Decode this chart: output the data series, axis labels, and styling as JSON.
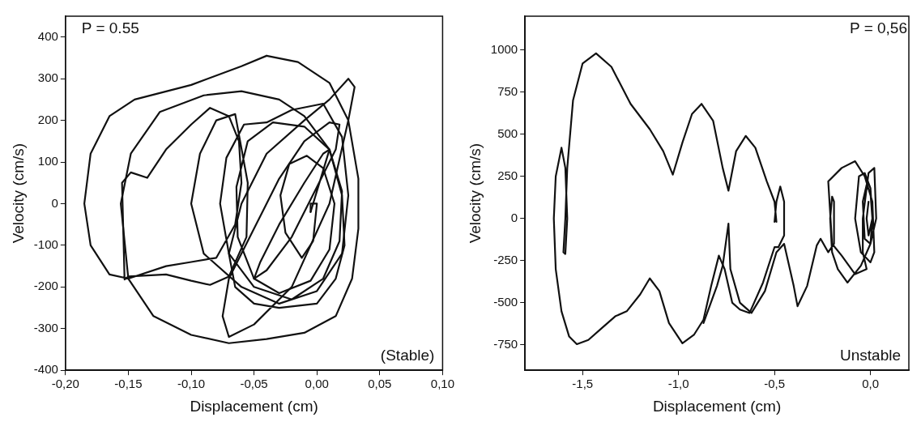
{
  "chart_data": [
    {
      "type": "line",
      "xlabel": "Displacement (cm)",
      "ylabel": "Velocity (cm/s)",
      "annotations": [
        "P = 0.55",
        "(Stable)"
      ],
      "xlim": [
        -0.2,
        0.1
      ],
      "ylim": [
        -400,
        450
      ],
      "xticks": [
        {
          "value": -0.2,
          "label": "-0,20"
        },
        {
          "value": -0.15,
          "label": "-0,15"
        },
        {
          "value": -0.1,
          "label": "-0,10"
        },
        {
          "value": -0.05,
          "label": "-0,05"
        },
        {
          "value": 0,
          "label": "0,00"
        },
        {
          "value": 0.05,
          "label": "0,05"
        },
        {
          "value": 0.1,
          "label": "0,10"
        }
      ],
      "yticks": [
        -400,
        -300,
        -200,
        -100,
        0,
        100,
        200,
        300,
        400
      ],
      "grid": false,
      "legend": false,
      "marker": "none",
      "line_style": "solid",
      "series": [
        {
          "color": "#111111",
          "x": [
            -0.005,
            -0.005,
            0,
            -0.003,
            -0.012,
            -0.025,
            -0.029,
            -0.022,
            -0.008,
            0.005,
            0.014,
            0.01,
            -0.005,
            -0.03,
            -0.05,
            -0.063,
            -0.064,
            -0.055,
            -0.035,
            -0.01,
            0.01,
            0.02,
            0.018,
            0.005,
            -0.02,
            -0.05,
            -0.07,
            -0.077,
            -0.072,
            -0.058,
            -0.04,
            -0.02,
            0.005,
            0.02,
            0.025,
            0.02,
            0,
            -0.03,
            -0.06,
            -0.09,
            -0.1,
            -0.093,
            -0.08,
            -0.065,
            -0.055,
            -0.056,
            -0.07,
            -0.085,
            -0.1,
            -0.12,
            -0.15,
            -0.153,
            -0.155,
            -0.148,
            -0.135,
            -0.12,
            -0.1,
            -0.085,
            -0.07,
            -0.062,
            -0.06,
            -0.065,
            -0.08,
            -0.1,
            -0.12,
            -0.15,
            -0.165,
            -0.18,
            -0.185,
            -0.18,
            -0.165,
            -0.145,
            -0.1,
            -0.06,
            -0.04
          ],
          "values": [
            -20,
            0,
            0,
            -90,
            -130,
            -70,
            20,
            95,
            115,
            85,
            0,
            -110,
            -185,
            -215,
            -180,
            -80,
            40,
            150,
            195,
            185,
            130,
            30,
            -90,
            -180,
            -230,
            -200,
            -120,
            0,
            110,
            190,
            195,
            225,
            240,
            160,
            20,
            -120,
            -210,
            -240,
            -200,
            -120,
            0,
            120,
            200,
            215,
            50,
            -80,
            -175,
            -195,
            -185,
            -170,
            -175,
            -182,
            50,
            75,
            62,
            130,
            190,
            230,
            210,
            150,
            50,
            -50,
            -130,
            -140,
            -150,
            -180,
            -170,
            -100,
            0,
            120,
            210,
            250,
            285,
            330,
            355
          ]
        },
        {
          "color": "#111111",
          "x": [
            -0.04,
            -0.015,
            0.01,
            0.025,
            0.033,
            0.033,
            0.028,
            0.015,
            -0.01,
            -0.04,
            -0.07,
            -0.1,
            -0.13,
            -0.15,
            -0.156,
            -0.148,
            -0.125,
            -0.09,
            -0.06,
            -0.03,
            -0.01,
            0.01,
            0.02,
            0.022,
            0.015,
            0,
            -0.03,
            -0.05,
            -0.065,
            -0.07,
            -0.06,
            -0.04,
            -0.01,
            0.01,
            0.025,
            0.03,
            0.025,
            0.01,
            -0.02,
            -0.05,
            -0.07,
            -0.075,
            -0.07,
            -0.05,
            -0.03,
            -0.01,
            0.01,
            0.018,
            0.015,
            0,
            -0.02,
            -0.04,
            -0.05,
            -0.045,
            -0.03,
            -0.01,
            0.005,
            0.01,
            0.005,
            -0.005
          ],
          "values": [
            355,
            340,
            290,
            200,
            60,
            -60,
            -180,
            -270,
            -310,
            -325,
            -335,
            -315,
            -270,
            -180,
            0,
            120,
            220,
            260,
            270,
            250,
            210,
            130,
            20,
            -100,
            -180,
            -240,
            -250,
            -240,
            -200,
            -120,
            0,
            120,
            200,
            250,
            300,
            280,
            200,
            0,
            -200,
            -290,
            -320,
            -270,
            -180,
            -60,
            60,
            150,
            195,
            190,
            130,
            40,
            -80,
            -160,
            -180,
            -140,
            -50,
            50,
            120,
            130,
            80,
            -20
          ]
        }
      ]
    },
    {
      "type": "line",
      "xlabel": "Displacement (cm)",
      "ylabel": "Velocity (cm/s)",
      "annotations": [
        "P = 0,56",
        "Unstable"
      ],
      "xlim": [
        -1.8,
        0.2
      ],
      "ylim": [
        -900,
        1200
      ],
      "xticks": [
        {
          "value": -1.5,
          "label": "-1,5"
        },
        {
          "value": -1,
          "label": "-1,0"
        },
        {
          "value": -0.5,
          "label": "-0,5"
        },
        {
          "value": 0,
          "label": "0,0"
        }
      ],
      "yticks": [
        -750,
        -500,
        -250,
        0,
        250,
        500,
        750,
        1000
      ],
      "grid": false,
      "legend": false,
      "marker": "none",
      "line_style": "solid",
      "series": [
        {
          "color": "#111111",
          "x": [
            -0.49,
            -0.5,
            -0.54,
            -0.6,
            -0.65,
            -0.7,
            -0.74,
            -0.77,
            -0.82,
            -0.88,
            -0.93,
            -0.98,
            -1.03,
            -1.08,
            -1.15,
            -1.25,
            -1.35,
            -1.43,
            -1.5,
            -1.55,
            -1.58,
            -1.59,
            -1.6,
            -1.59,
            -1.58,
            -1.59,
            -1.61,
            -1.64,
            -1.65,
            -1.64,
            -1.61,
            -1.57,
            -1.53,
            -1.47,
            -1.4,
            -1.33,
            -1.27,
            -1.2,
            -1.15,
            -1.1,
            -1.05,
            -0.98,
            -0.92,
            -0.87,
            -0.83,
            -0.79,
            -0.76,
            -0.72,
            -0.68,
            -0.63,
            -0.56,
            -0.5,
            -0.48,
            -0.45,
            -0.45,
            -0.47,
            -0.49,
            -0.5
          ],
          "values": [
            -20,
            100,
            220,
            420,
            490,
            400,
            165,
            300,
            580,
            680,
            620,
            450,
            260,
            400,
            530,
            680,
            900,
            980,
            920,
            700,
            300,
            0,
            -200,
            -210,
            0,
            300,
            420,
            250,
            0,
            -300,
            -550,
            -700,
            -745,
            -720,
            -650,
            -580,
            -550,
            -450,
            -355,
            -430,
            -620,
            -740,
            -690,
            -600,
            -400,
            -220,
            -300,
            -500,
            -540,
            -560,
            -380,
            -170,
            -170,
            -100,
            100,
            190,
            100,
            -20
          ]
        },
        {
          "color": "#111111",
          "x": [
            -0.87,
            -0.8,
            -0.77,
            -0.74,
            -0.73,
            -0.68,
            -0.62,
            -0.55,
            -0.49,
            -0.45,
            -0.4,
            -0.38,
            -0.33,
            -0.28,
            -0.26,
            -0.22,
            -0.19,
            -0.19,
            -0.2,
            -0.21,
            -0.2,
            -0.17,
            -0.12,
            -0.05,
            0,
            0.03,
            0.02,
            -0.01,
            -0.04,
            -0.04,
            -0.02,
            -0.08,
            -0.15,
            -0.2,
            -0.22,
            -0.15,
            -0.08,
            -0.03,
            0.01,
            0.02,
            0,
            -0.05,
            -0.08,
            -0.06,
            -0.03,
            0,
            0.01,
            0,
            -0.03,
            -0.04,
            -0.02,
            0,
            0.01,
            -0.01,
            -0.02,
            -0.01
          ],
          "values": [
            -620,
            -400,
            -280,
            -30,
            -300,
            -500,
            -560,
            -430,
            -200,
            -150,
            -400,
            -520,
            -400,
            -160,
            -120,
            -200,
            -150,
            100,
            130,
            0,
            -200,
            -300,
            -380,
            -280,
            -150,
            0,
            300,
            270,
            0,
            -200,
            -300,
            -330,
            -220,
            -150,
            220,
            300,
            340,
            250,
            100,
            -200,
            -260,
            -200,
            0,
            250,
            270,
            180,
            0,
            -150,
            -120,
            100,
            200,
            150,
            0,
            -100,
            0,
            100
          ]
        }
      ]
    }
  ]
}
